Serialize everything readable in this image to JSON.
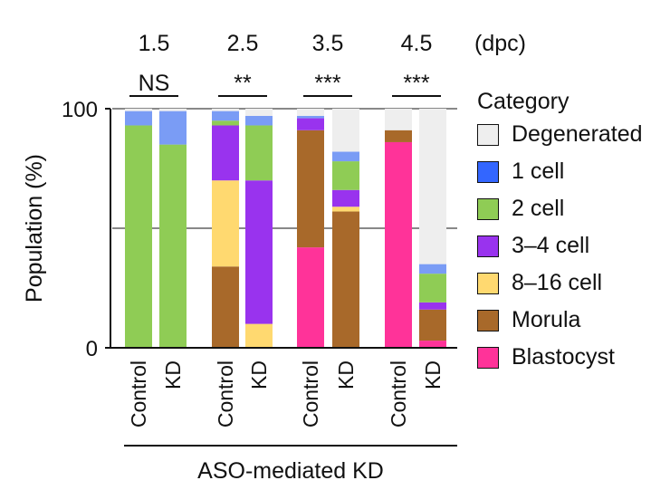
{
  "chart_data": {
    "type": "bar",
    "stacked": true,
    "ylabel": "Population (%)",
    "ylim": [
      0,
      100
    ],
    "ytick_labels": [
      "0",
      "100"
    ],
    "yticks": [
      0,
      100
    ],
    "dashed_gridlines": [
      50,
      100
    ],
    "group_labels": [
      "1.5",
      "2.5",
      "3.5",
      "4.5"
    ],
    "group_unit": "(dpc)",
    "significance": [
      "NS",
      "**",
      "***",
      "***"
    ],
    "xlabel": "ASO-mediated KD",
    "legend_title": "Category",
    "categories_order": [
      "Degenerated",
      "1 cell",
      "2 cell",
      "3–4 cell",
      "8–16 cell",
      "Morula",
      "Blastocyst"
    ],
    "colors": {
      "Degenerated": "#eeeeee",
      "1 cell": "#3366ff",
      "2 cell": "#8fcc55",
      "3–4 cell": "#9933ee",
      "8–16 cell": "#ffd970",
      "Morula": "#a8692a",
      "Blastocyst": "#ff3399",
      "2 cell (light)": "#7a9cf5"
    },
    "bars": [
      {
        "group": "1.5",
        "label": "Control",
        "segments": [
          {
            "category": "2 cell",
            "value": 93
          },
          {
            "category": "1 cell",
            "value": 6
          },
          {
            "category": "Degenerated",
            "value": 1
          }
        ]
      },
      {
        "group": "1.5",
        "label": "KD",
        "segments": [
          {
            "category": "2 cell",
            "value": 85
          },
          {
            "category": "1 cell",
            "value": 14
          },
          {
            "category": "Degenerated",
            "value": 1
          }
        ]
      },
      {
        "group": "2.5",
        "label": "Control",
        "segments": [
          {
            "category": "Morula",
            "value": 34
          },
          {
            "category": "8–16 cell",
            "value": 36
          },
          {
            "category": "3–4 cell",
            "value": 23
          },
          {
            "category": "2 cell",
            "value": 2
          },
          {
            "category": "1 cell",
            "value": 4
          },
          {
            "category": "Degenerated",
            "value": 1
          }
        ]
      },
      {
        "group": "2.5",
        "label": "KD",
        "segments": [
          {
            "category": "8–16 cell",
            "value": 10
          },
          {
            "category": "3–4 cell",
            "value": 60
          },
          {
            "category": "2 cell",
            "value": 23
          },
          {
            "category": "1 cell",
            "value": 4
          },
          {
            "category": "Degenerated",
            "value": 3
          }
        ]
      },
      {
        "group": "3.5",
        "label": "Control",
        "segments": [
          {
            "category": "Blastocyst",
            "value": 42
          },
          {
            "category": "Morula",
            "value": 49
          },
          {
            "category": "3–4 cell",
            "value": 5
          },
          {
            "category": "1 cell",
            "value": 1
          },
          {
            "category": "Degenerated",
            "value": 3
          }
        ]
      },
      {
        "group": "3.5",
        "label": "KD",
        "segments": [
          {
            "category": "Morula",
            "value": 57
          },
          {
            "category": "8–16 cell",
            "value": 2
          },
          {
            "category": "3–4 cell",
            "value": 7
          },
          {
            "category": "2 cell",
            "value": 12
          },
          {
            "category": "1 cell",
            "value": 4
          },
          {
            "category": "Degenerated",
            "value": 18
          }
        ]
      },
      {
        "group": "4.5",
        "label": "Control",
        "segments": [
          {
            "category": "Blastocyst",
            "value": 86
          },
          {
            "category": "Morula",
            "value": 5
          },
          {
            "category": "Degenerated",
            "value": 9
          }
        ]
      },
      {
        "group": "4.5",
        "label": "KD",
        "segments": [
          {
            "category": "Blastocyst",
            "value": 3
          },
          {
            "category": "Morula",
            "value": 13
          },
          {
            "category": "3–4 cell",
            "value": 3
          },
          {
            "category": "2 cell",
            "value": 12
          },
          {
            "category": "1 cell",
            "value": 4
          },
          {
            "category": "Degenerated",
            "value": 65
          }
        ]
      }
    ]
  }
}
